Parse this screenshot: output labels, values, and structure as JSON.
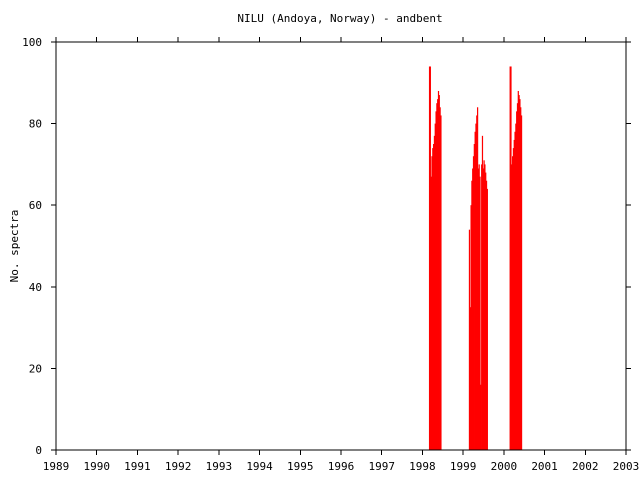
{
  "chart_data": {
    "type": "bar",
    "title": "NILU (Andoya, Norway) - andbent",
    "xlabel": "",
    "ylabel": "No. spectra",
    "xlim": [
      1989,
      2003
    ],
    "ylim": [
      0,
      100
    ],
    "x_ticks": [
      "1989",
      "1990",
      "1991",
      "1992",
      "1993",
      "1994",
      "1995",
      "1996",
      "1997",
      "1998",
      "1999",
      "2000",
      "2001",
      "2002",
      "2003"
    ],
    "y_ticks": [
      "0",
      "20",
      "40",
      "60",
      "80",
      "100"
    ],
    "grid": false,
    "bar_color": "#ff0000",
    "series": [
      {
        "x": [
          1998.17,
          1998.19,
          1998.21,
          1998.23,
          1998.25,
          1998.27,
          1998.29,
          1998.31,
          1998.33,
          1998.35,
          1998.37,
          1998.39,
          1998.41,
          1998.43,
          1998.45,
          1998.47,
          1998.49,
          1998.51,
          1998.53,
          1998.55,
          1999.15,
          1999.17,
          1999.19,
          1999.21,
          1999.23,
          1999.25,
          1999.27,
          1999.29,
          1999.31,
          1999.33,
          1999.35,
          1999.37,
          1999.39,
          1999.41,
          1999.43,
          1999.45,
          1999.47,
          1999.49,
          1999.51,
          1999.53,
          1999.55,
          1999.57,
          1999.59,
          1999.61,
          1999.63,
          1999.65,
          1999.67,
          1999.69,
          1999.71,
          1999.73,
          1999.75,
          2000.15,
          2000.17,
          2000.19,
          2000.21,
          2000.23,
          2000.25,
          2000.27,
          2000.29,
          2000.31,
          2000.33,
          2000.35,
          2000.37,
          2000.39,
          2000.41,
          2000.43,
          2000.45,
          2000.47,
          2000.49,
          2000.51,
          2000.53,
          2000.55
        ],
        "values": [
          94,
          94,
          67,
          72,
          74,
          75,
          77,
          80,
          83,
          85,
          86,
          88,
          87,
          84,
          82,
          0,
          0,
          0,
          0,
          0,
          54,
          35,
          60,
          66,
          69,
          72,
          75,
          78,
          80,
          82,
          84,
          69,
          70,
          67,
          16,
          70,
          77,
          69,
          71,
          70,
          68,
          66,
          64,
          0,
          0,
          0,
          0,
          0,
          0,
          0,
          0,
          94,
          94,
          70,
          72,
          74,
          76,
          78,
          80,
          83,
          85,
          88,
          87,
          86,
          84,
          82,
          0,
          0,
          0,
          0,
          0,
          0
        ]
      }
    ]
  }
}
